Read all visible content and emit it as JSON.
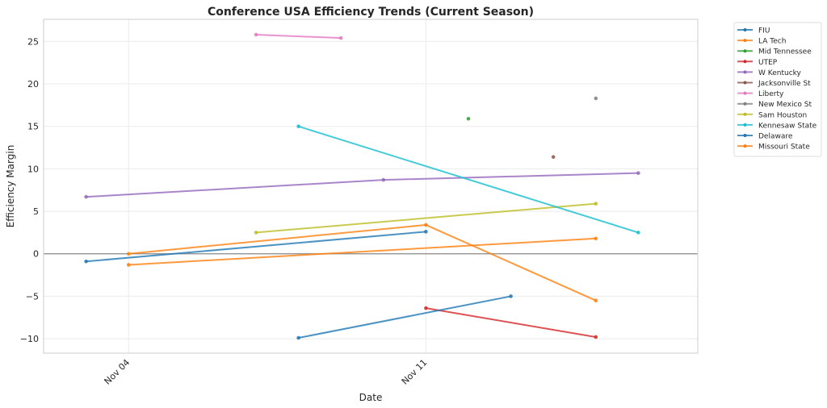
{
  "chart_data": {
    "type": "line",
    "title": "Conference USA Efficiency Trends (Current Season)",
    "xlabel": "Date",
    "ylabel": "Efficiency Margin",
    "x_unit": "day of November",
    "xlim": [
      2.0,
      17.4
    ],
    "ylim": [
      -11.7,
      27.6
    ],
    "x_ticks": [
      {
        "day": 4,
        "label": "Nov 04"
      },
      {
        "day": 11,
        "label": "Nov 11"
      }
    ],
    "y_ticks": [
      -10,
      -5,
      0,
      5,
      10,
      15,
      20,
      25
    ],
    "grid": true,
    "zero_line": true,
    "legend_position": "outside-top-right",
    "series": [
      {
        "name": "FIU",
        "color": "#1f77b4",
        "points": [
          [
            3,
            -0.9
          ],
          [
            11,
            2.6
          ]
        ]
      },
      {
        "name": "LA Tech",
        "color": "#ff7f0e",
        "points": [
          [
            4,
            0.0
          ],
          [
            11,
            3.4
          ],
          [
            15,
            -5.5
          ]
        ]
      },
      {
        "name": "Mid Tennessee",
        "color": "#2ca02c",
        "points": [
          [
            12,
            15.9
          ]
        ]
      },
      {
        "name": "UTEP",
        "color": "#d62728",
        "points": [
          [
            11,
            -6.4
          ],
          [
            15,
            -9.8
          ]
        ]
      },
      {
        "name": "W Kentucky",
        "color": "#9467bd",
        "points": [
          [
            3,
            6.7
          ],
          [
            10,
            8.7
          ],
          [
            16,
            9.5
          ]
        ]
      },
      {
        "name": "Jacksonville St",
        "color": "#8c564b",
        "points": [
          [
            14,
            11.4
          ]
        ]
      },
      {
        "name": "Liberty",
        "color": "#e377c2",
        "points": [
          [
            7,
            25.8
          ],
          [
            9,
            25.4
          ]
        ]
      },
      {
        "name": "New Mexico St",
        "color": "#7f7f7f",
        "points": [
          [
            15,
            18.3
          ]
        ]
      },
      {
        "name": "Sam Houston",
        "color": "#bcbd22",
        "points": [
          [
            7,
            2.5
          ],
          [
            15,
            5.9
          ]
        ]
      },
      {
        "name": "Kennesaw State",
        "color": "#17becf",
        "points": [
          [
            8,
            15.0
          ],
          [
            16,
            2.5
          ]
        ]
      },
      {
        "name": "Delaware",
        "color": "#1f77b4",
        "points": [
          [
            8,
            -9.9
          ],
          [
            13,
            -5.0
          ]
        ]
      },
      {
        "name": "Missouri State",
        "color": "#ff7f0e",
        "points": [
          [
            4,
            -1.3
          ],
          [
            15,
            1.8
          ]
        ]
      }
    ]
  }
}
